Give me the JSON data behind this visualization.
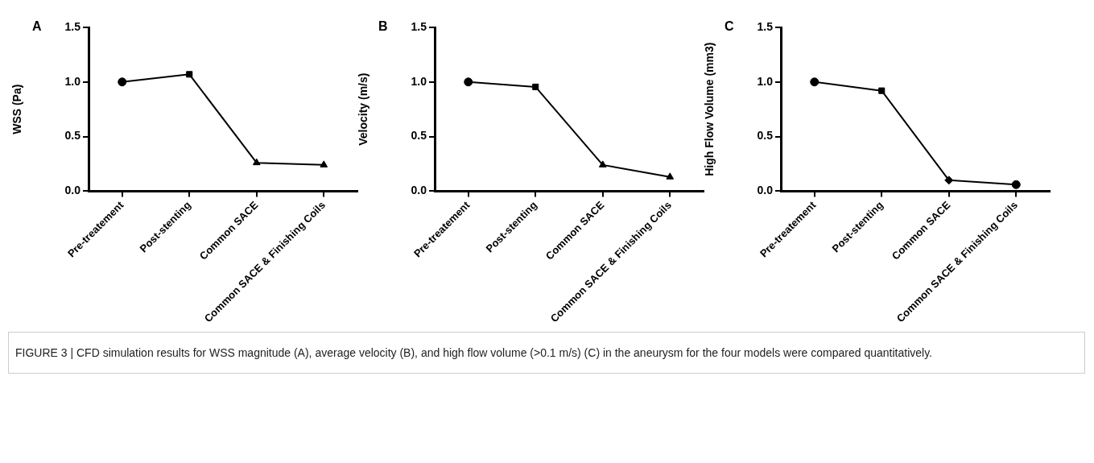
{
  "chart_data": [
    {
      "type": "line",
      "title": "A",
      "ylabel": "WSS (Pa)",
      "categories": [
        "Pre-treatement",
        "Post-stenting",
        "Common SACE",
        "Common SACE & Finishing Coils"
      ],
      "series": [
        {
          "color": "#000000",
          "values": [
            1.0,
            1.07,
            0.26,
            0.24
          ]
        }
      ],
      "marker": [
        "circle",
        "square",
        "triangle",
        "triangle"
      ],
      "ylim": [
        0,
        1.5
      ],
      "yticks": [
        {
          "value": 0,
          "label": "0.0"
        },
        {
          "value": 0.5,
          "label": "0.5"
        },
        {
          "value": 1,
          "label": "1.0"
        },
        {
          "value": 1.5,
          "label": "1.5"
        }
      ],
      "grid": false,
      "annotations": [
        "FIGURE 3 | CFD simulation results for WSS magnitude (A), average velocity (B), and high flow volume (>0.1 m/s) (C) in the aneurysm for the four models were compared quantitatively."
      ]
    },
    {
      "type": "line",
      "title": "B",
      "ylabel": "Velocity (m/s)",
      "categories": [
        "Pre-treatement",
        "Post-stenting",
        "Common SACE",
        "Common SACE & Finishing Coils"
      ],
      "series": [
        {
          "color": "#000000",
          "values": [
            1.0,
            0.955,
            0.24,
            0.13
          ]
        }
      ],
      "marker": [
        "circle",
        "square",
        "triangle",
        "triangle"
      ],
      "ylim": [
        0,
        1.5
      ],
      "yticks": [
        {
          "value": 0,
          "label": "0.0"
        },
        {
          "value": 0.5,
          "label": "0.5"
        },
        {
          "value": 1,
          "label": "1.0"
        },
        {
          "value": 1.5,
          "label": "1.5"
        }
      ],
      "grid": false
    },
    {
      "type": "line",
      "title": "C",
      "ylabel": "High Flow Volume (mm3)",
      "categories": [
        "Pre-treatement",
        "Post-stenting",
        "Common SACE",
        "Common SACE & Finishing Coils"
      ],
      "series": [
        {
          "color": "#000000",
          "values": [
            1.0,
            0.92,
            0.1,
            0.06
          ]
        }
      ],
      "marker": [
        "circle",
        "square",
        "diamond",
        "circle"
      ],
      "ylim": [
        0,
        1.5
      ],
      "yticks": [
        {
          "value": 0,
          "label": "0.0"
        },
        {
          "value": 0.5,
          "label": "0.5"
        },
        {
          "value": 1,
          "label": "1.0"
        },
        {
          "value": 1.5,
          "label": "1.5"
        }
      ],
      "grid": false
    }
  ]
}
